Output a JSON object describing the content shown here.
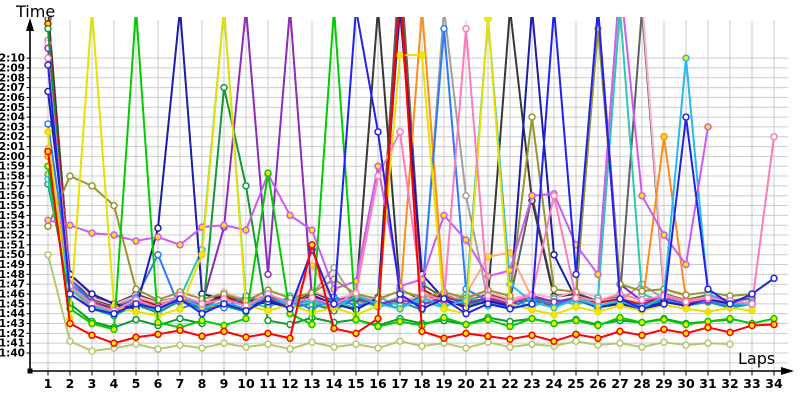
{
  "axes": {
    "time_label": "Time",
    "laps_label": "Laps"
  },
  "chart_data": {
    "type": "line",
    "title": "",
    "xlabel": "Laps",
    "ylabel": "Time",
    "x_ticks": [
      1,
      2,
      3,
      4,
      5,
      6,
      7,
      8,
      9,
      10,
      11,
      12,
      13,
      14,
      15,
      16,
      17,
      18,
      19,
      20,
      21,
      22,
      23,
      24,
      25,
      26,
      27,
      28,
      29,
      30,
      31,
      32,
      33,
      34
    ],
    "y_tick_labels_top_to_bottom": [
      "2:10",
      "2:09",
      "2:08",
      "2:07",
      "2:06",
      "2:05",
      "2:04",
      "2:03",
      "2:02",
      "2:01",
      "2:00",
      "1:59",
      "1:58",
      "1:57",
      "1:56",
      "1:55",
      "1:54",
      "1:53",
      "1:52",
      "1:51",
      "1:50",
      "1:49",
      "1:48",
      "1:47",
      "1:46",
      "1:45",
      "1:44",
      "1:43",
      "1:42",
      "1:41",
      "1:40"
    ],
    "y_axis": {
      "unit": "m:ss",
      "min_seconds": 100,
      "max_seconds": 130,
      "tick_step_seconds": 1,
      "values_above_max_clipped": true
    },
    "grid": true,
    "legend": "none",
    "grid_color": "#cccccc",
    "axis_color": "#000000",
    "marker_fills": {
      "white": "#ffffff",
      "yellow": "#ffe400"
    },
    "series": [
      {
        "id": "s17",
        "color": "#a0a0a0",
        "marker_fill": "#ffffff",
        "lap_seconds": [
          131.8,
          107,
          105.5,
          104.6,
          105.8,
          104.9,
          105.4,
          104.7,
          105.9,
          105,
          105.5,
          104.8,
          106,
          108.7,
          105.2,
          104.9,
          105.7,
          105.1,
          135,
          116,
          105.4,
          104.9,
          105.8,
          105.2,
          105.6,
          104.8,
          105.3,
          107,
          105.5,
          105,
          105.6,
          105.2,
          105.5
        ]
      },
      {
        "id": "s18",
        "color": "#606060",
        "marker_fill": "#ffffff",
        "lap_seconds": [
          134,
          108,
          105.8,
          105,
          106,
          105.2,
          105.7,
          105,
          106.2,
          105.3,
          105.8,
          105.1,
          106.3,
          105.4,
          105.9,
          105.2,
          140,
          107,
          105.6,
          105.3,
          106,
          105.4,
          116,
          105.8,
          106.1,
          105.3,
          105.7,
          135,
          106,
          105.4,
          105.9,
          105.3,
          105.6
        ]
      },
      {
        "id": "s19",
        "color": "#383838",
        "marker_fill": "#ffffff",
        "lap_seconds": [
          135,
          107.5,
          105.5,
          104.8,
          105.9,
          105.1,
          105.6,
          104.9,
          106,
          105.2,
          105.7,
          105,
          106.2,
          105.3,
          105.8,
          135,
          106.5,
          105.4,
          105.9,
          105.1,
          105.6,
          135,
          115.5,
          105.7,
          106,
          105.2,
          105.6,
          105,
          105.8,
          105.3,
          105.7
        ]
      },
      {
        "id": "s16",
        "color": "#ffb0c8",
        "marker_fill": "#ffffff",
        "lap_seconds": [
          131.5,
          108,
          105.6,
          104.9,
          105.8,
          105.1,
          105.7,
          105,
          106.2,
          105.4,
          105.9,
          105.2,
          106.3,
          105.5,
          106,
          105.3,
          106.4,
          105.6,
          106.1,
          105.4,
          106.2,
          105.5,
          106,
          105.6,
          106.3,
          105.7,
          135,
          136,
          106.5,
          105.8
        ]
      },
      {
        "id": "s22",
        "color": "#ffaa80",
        "marker_fill": "#ffe400",
        "lap_seconds": [
          120.8,
          107.2,
          105.3,
          104.4,
          105.6,
          104.7,
          105.2,
          104.5,
          105.7,
          104.8,
          105.4,
          104.6,
          108.9,
          105.1,
          105.6,
          104.9,
          105.4,
          105.7,
          105.2,
          106,
          109.8,
          110.2,
          105.6,
          105,
          105.8,
          105.2,
          105.6,
          105.1,
          105.9,
          105.3,
          105.7,
          105.2
        ]
      },
      {
        "id": "s21",
        "color": "#ff8c1a",
        "marker_fill": "#ffe400",
        "lap_seconds": [
          120,
          106.5,
          104.6,
          103.9,
          105,
          104.2,
          105.4,
          104.5,
          104.9,
          104.3,
          105.6,
          104.7,
          105.1,
          104.4,
          105.7,
          104.8,
          105.3,
          135,
          105.9,
          105,
          105.4,
          104.6,
          105.8,
          104.9,
          105.5,
          104.7,
          105.1,
          104.6,
          122,
          105.4,
          105.2,
          104.8
        ]
      },
      {
        "id": "s20",
        "color": "#b51616",
        "marker_fill": "#ffe400",
        "lap_seconds": [
          133.5,
          107,
          105.2,
          104.5,
          105.5,
          104.8,
          105.3,
          104.6,
          105.8,
          104.9,
          105.4,
          104.7,
          105.9,
          105,
          105.5,
          104.8,
          137,
          106.5,
          105.3,
          104.9,
          105.6,
          105,
          105.4,
          104.8,
          105.7,
          105.1,
          105.5,
          104.9,
          105.8,
          105.2,
          105.5,
          105
        ]
      },
      {
        "id": "s12",
        "color": "#0f9f6e",
        "marker_fill": "#ffffff",
        "lap_seconds": [
          117.2,
          106,
          104.5,
          103.8,
          104.9,
          104.1,
          105.3,
          104.4,
          104.8,
          104.2,
          105.5,
          104.6,
          105,
          104.3,
          105.6,
          104.7,
          105.2,
          104.4,
          105.8,
          104.9,
          105.3,
          104.5,
          105.7,
          104.8,
          105.4,
          104.6,
          105,
          104.5,
          105.5,
          104.8,
          105.2,
          104.6,
          105
        ]
      },
      {
        "id": "s11",
        "color": "#2cc8b0",
        "marker_fill": "#ffffff",
        "lap_seconds": [
          117.7,
          106.5,
          104.8,
          104,
          105.2,
          104.3,
          105.6,
          110.5,
          135,
          105.3,
          104.6,
          105.8,
          104.9,
          105.4,
          104.5,
          105.7,
          104.8,
          105.3,
          104.6,
          105.9,
          104.8,
          105.4,
          104.7,
          105.5,
          104.9,
          105.6,
          135,
          106,
          105.2,
          104.8,
          105.4,
          104.9,
          105.2
        ]
      },
      {
        "id": "s9",
        "color": "#2b7bff",
        "marker_fill": "#ffffff",
        "lap_seconds": [
          123.3,
          107.5,
          105.2,
          104.3,
          105.6,
          110,
          104.5,
          105.3,
          104.6,
          105.8,
          104.9,
          105.5,
          104.4,
          105.7,
          104.8,
          105.2,
          104.5,
          105.9,
          133,
          106.5,
          105.3,
          104.7,
          105.5,
          104.9,
          105.6,
          104.6,
          105.2,
          104.8,
          105.5,
          104.9,
          105.3,
          104.7,
          105.1
        ]
      },
      {
        "id": "s7",
        "color": "#1c1caa",
        "marker_fill": "#ffffff",
        "lap_seconds": [
          126.6,
          108,
          106,
          105,
          104.5,
          112.7,
          135,
          106,
          105.5,
          104.8,
          105.2,
          104.6,
          105.8,
          105,
          104.4,
          105.6,
          135,
          108,
          105.5,
          104.6,
          105.3,
          104.8,
          135,
          110,
          105.5,
          104.7,
          105,
          104.5,
          105.2,
          104.8,
          105.5,
          105
        ]
      },
      {
        "id": "s14",
        "color": "#8c2cb8",
        "marker_fill": "#ffffff",
        "lap_seconds": [
          131,
          107,
          105.1,
          104.4,
          105.3,
          104.6,
          105.8,
          104.9,
          112.8,
          135,
          108,
          135,
          105.5,
          104.8,
          105.6,
          105,
          105.4,
          104.9,
          105.7,
          105.1,
          105.5,
          105,
          105.8,
          105.2,
          105.6,
          135,
          107,
          105.3,
          105.7,
          105.1,
          105.4
        ]
      },
      {
        "id": "s6",
        "color": "#97972f",
        "marker_fill": "#ffffff",
        "lap_seconds": [
          112.9,
          118,
          117,
          115,
          106.5,
          105.4,
          106.2,
          105.5,
          106,
          105.3,
          106.4,
          105.6,
          106.1,
          107.5,
          106,
          105.5,
          106.3,
          105.7,
          106.2,
          105.6,
          106.4,
          105.8,
          124,
          106.5,
          106.2,
          133,
          107,
          106.3,
          106.5,
          105.9,
          106.2,
          105.8,
          106
        ]
      },
      {
        "id": "s3",
        "color": "#119933",
        "marker_fill": "#ffffff",
        "lap_seconds": [
          133,
          105,
          103.2,
          102.6,
          103.4,
          102.8,
          103.5,
          103,
          127,
          117,
          103.3,
          102.9,
          103.6,
          103.1,
          103.4,
          102.8,
          103.5,
          103,
          103.3,
          102.9,
          103.6,
          103.2,
          103.5,
          103,
          103.4,
          102.9,
          103.3,
          103.1,
          103.5,
          103,
          103.2,
          103.4
        ]
      },
      {
        "id": "s10",
        "color": "#25bbee",
        "marker_fill": "#ffe400",
        "lap_seconds": [
          118.2,
          107,
          105,
          104.2,
          105.5,
          104.4,
          105.8,
          104.6,
          105.2,
          104.5,
          106,
          104.8,
          105.4,
          104.6,
          105.8,
          105,
          104.5,
          105.6,
          104.8,
          105.3,
          134,
          107,
          105.2,
          104.6,
          105.5,
          104.8,
          105.3,
          104.5,
          105.8,
          130,
          106,
          105.1,
          104.9
        ]
      },
      {
        "id": "s13",
        "color": "#cb5cf2",
        "marker_fill": "#ffe400",
        "lap_seconds": [
          113.5,
          113,
          112.2,
          112,
          111.4,
          111.8,
          111,
          112.8,
          113,
          112.5,
          118.2,
          114,
          112.5,
          106.5,
          107.3,
          119,
          106.8,
          107.5,
          114,
          111.5,
          107.8,
          108.4,
          116,
          116.2,
          111,
          108,
          138,
          116,
          112,
          109,
          123
        ]
      },
      {
        "id": "s5",
        "color": "#e8e000",
        "marker_fill": "#ffe400",
        "lap_seconds": [
          122.5,
          103.5,
          135,
          104.7,
          104.2,
          103.8,
          104.5,
          110,
          135,
          104.8,
          104.3,
          104.9,
          104.1,
          104.6,
          103.9,
          104.8,
          130.3,
          130.3,
          104.5,
          104,
          134,
          105,
          104.4,
          103.9,
          104.7,
          104.2,
          104.8,
          104.3,
          104.9,
          104.5,
          104.2,
          104.6,
          104.3
        ]
      },
      {
        "id": "s4",
        "color": "#b5c86e",
        "marker_fill": "#ffffff",
        "lap_seconds": [
          110,
          101.2,
          100.2,
          100.5,
          100.9,
          100.4,
          100.8,
          100.5,
          101,
          100.6,
          100.9,
          100.4,
          101.1,
          100.6,
          100.9,
          100.5,
          101.2,
          100.7,
          101,
          100.5,
          101.1,
          100.6,
          100.9,
          100.7,
          101.2,
          100.8,
          101,
          100.6,
          101.1,
          100.8,
          101,
          100.9
        ]
      },
      {
        "id": "s2",
        "color": "#00cc00",
        "marker_fill": "#ffe400",
        "lap_seconds": [
          119,
          104.5,
          103,
          102.4,
          135,
          103.1,
          102.6,
          103.3,
          102.8,
          103.5,
          118.3,
          104,
          102.9,
          135,
          103.4,
          102.7,
          103.2,
          102.8,
          103.6,
          102.9,
          103.4,
          102.7,
          103.5,
          103,
          103.3,
          102.8,
          103.6,
          103.1,
          103.4,
          102.9,
          103.2,
          103.5,
          103,
          103.5
        ]
      },
      {
        "id": "s15",
        "color": "#ff7bbb",
        "marker_fill": "#ffffff",
        "lap_seconds": [
          130,
          106.8,
          105,
          104.3,
          105.4,
          104.6,
          105.9,
          105,
          105.5,
          104.8,
          106,
          105.1,
          105.6,
          104.9,
          106.1,
          118,
          122.5,
          106,
          105.4,
          133,
          105.8,
          105.2,
          105.9,
          116,
          105.6,
          105.3,
          106,
          105.4,
          105.8,
          105.2,
          105.6,
          105.3,
          105,
          122
        ]
      },
      {
        "id": "s8",
        "color": "#2222ee",
        "marker_fill": "#ffffff",
        "lap_seconds": [
          129.3,
          106,
          104.5,
          104,
          105,
          104.5,
          105.5,
          104,
          105,
          104.3,
          105.5,
          104.5,
          110.5,
          105,
          135,
          122.5,
          106,
          104.5,
          105.5,
          104,
          105,
          104.5,
          105,
          135,
          108,
          135,
          105.5,
          104.5,
          105,
          124,
          106.5,
          105,
          106,
          107.6
        ]
      },
      {
        "id": "s1",
        "color": "#ff0000",
        "marker_fill": "#ffe400",
        "lap_seconds": [
          120.5,
          103,
          101.8,
          101,
          101.6,
          101.9,
          102.3,
          101.7,
          102.2,
          101.6,
          102,
          101.5,
          111,
          102.5,
          102,
          103.5,
          137,
          102.2,
          101.5,
          102,
          101.7,
          101.4,
          101.8,
          101.2,
          101.9,
          101.5,
          102.2,
          101.8,
          102.4,
          102,
          102.6,
          102.1,
          102.8,
          102.9
        ]
      }
    ]
  }
}
